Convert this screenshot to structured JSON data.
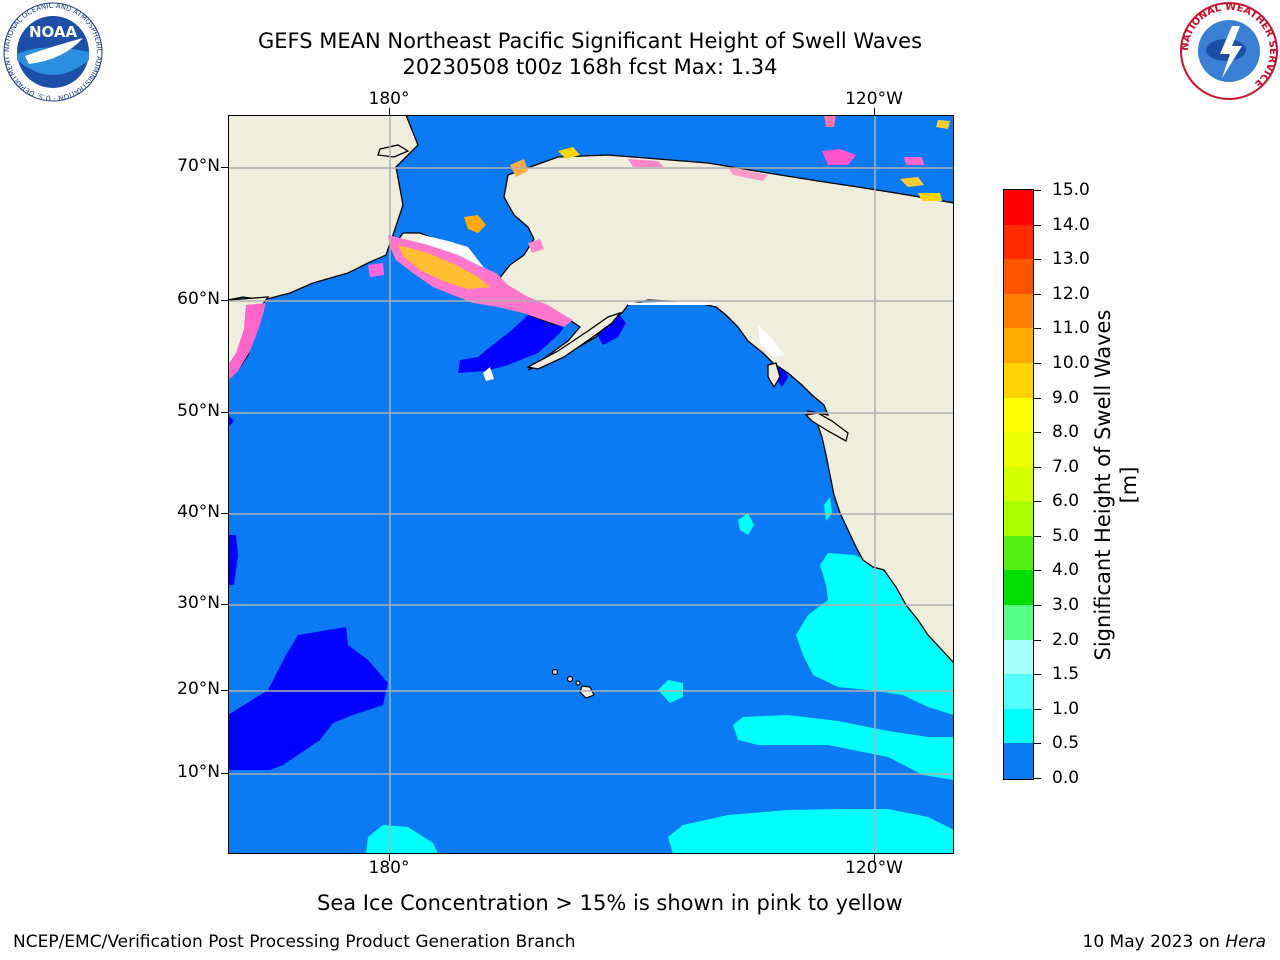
{
  "title": {
    "line1": "GEFS MEAN Northeast Pacific Significant Height of Swell Waves",
    "line2": "20230508 t00z 168h fcst   Max: 1.34"
  },
  "logos": {
    "noaa": {
      "text": "NOAA",
      "ring_text": "NATIONAL OCEANIC AND ATMOSPHERIC ADMINISTRATION · U.S. DEPARTMENT OF COMMERCE"
    },
    "nws": {
      "ring_text": "NATIONAL WEATHER SERVICE"
    }
  },
  "map": {
    "lon_labels": [
      "180°",
      "120°W"
    ],
    "lat_labels": [
      "70°N",
      "60°N",
      "50°N",
      "40°N",
      "30°N",
      "20°N",
      "10°N"
    ],
    "land_color": "#efeddc",
    "ocean_color": "#0a7af5",
    "grid_color": "#b0b0b0"
  },
  "colorbar": {
    "title": "Significant Height of Swell Waves [m]",
    "tick_labels": [
      "15.0",
      "14.0",
      "13.0",
      "12.0",
      "11.0",
      "10.0",
      "9.0",
      "8.0",
      "7.0",
      "6.0",
      "5.0",
      "4.0",
      "3.0",
      "2.0",
      "1.5",
      "1.0",
      "0.5",
      "0.0"
    ],
    "colors": [
      "#ff0000",
      "#ff2a00",
      "#ff5500",
      "#ff7f00",
      "#ffaa00",
      "#ffd400",
      "#ffff00",
      "#eaff00",
      "#d4ff00",
      "#aaff00",
      "#55ee11",
      "#00dd00",
      "#55ff88",
      "#aaffff",
      "#55ffff",
      "#00ffff",
      "#0a7af5",
      "#0000ff"
    ]
  },
  "notes": {
    "ice": "Sea Ice Concentration > 15% is shown in pink to yellow"
  },
  "footer": {
    "left": "NCEP/EMC/Verification Post Processing Product Generation Branch",
    "date": "10 May 2023 on ",
    "machine": "Hera"
  }
}
